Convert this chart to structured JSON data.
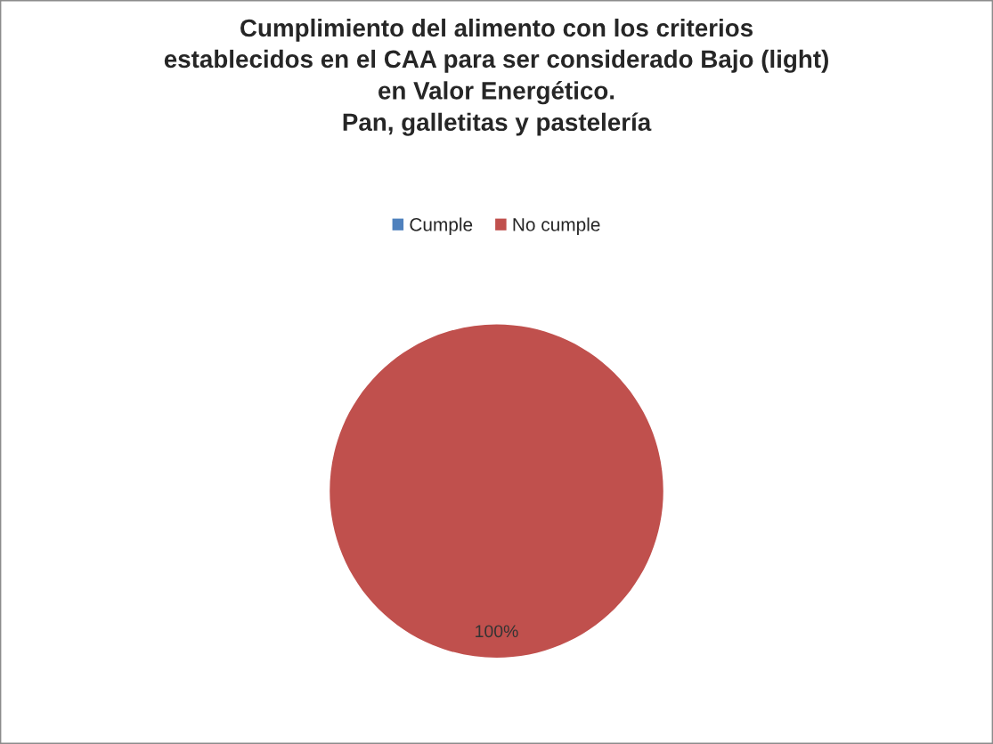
{
  "chart_data": {
    "type": "pie",
    "title": "Cumplimiento del alimento con los criterios\nestablecidos en el CAA para ser considerado Bajo (light)\nen Valor Energético.\nPan, galletitas y pastelería",
    "categories": [
      "Cumple",
      "No cumple"
    ],
    "values": [
      0,
      100
    ],
    "colors": [
      "#4f81bd",
      "#c0504d"
    ],
    "value_labels": [
      null,
      "100%"
    ],
    "legend": "top"
  }
}
